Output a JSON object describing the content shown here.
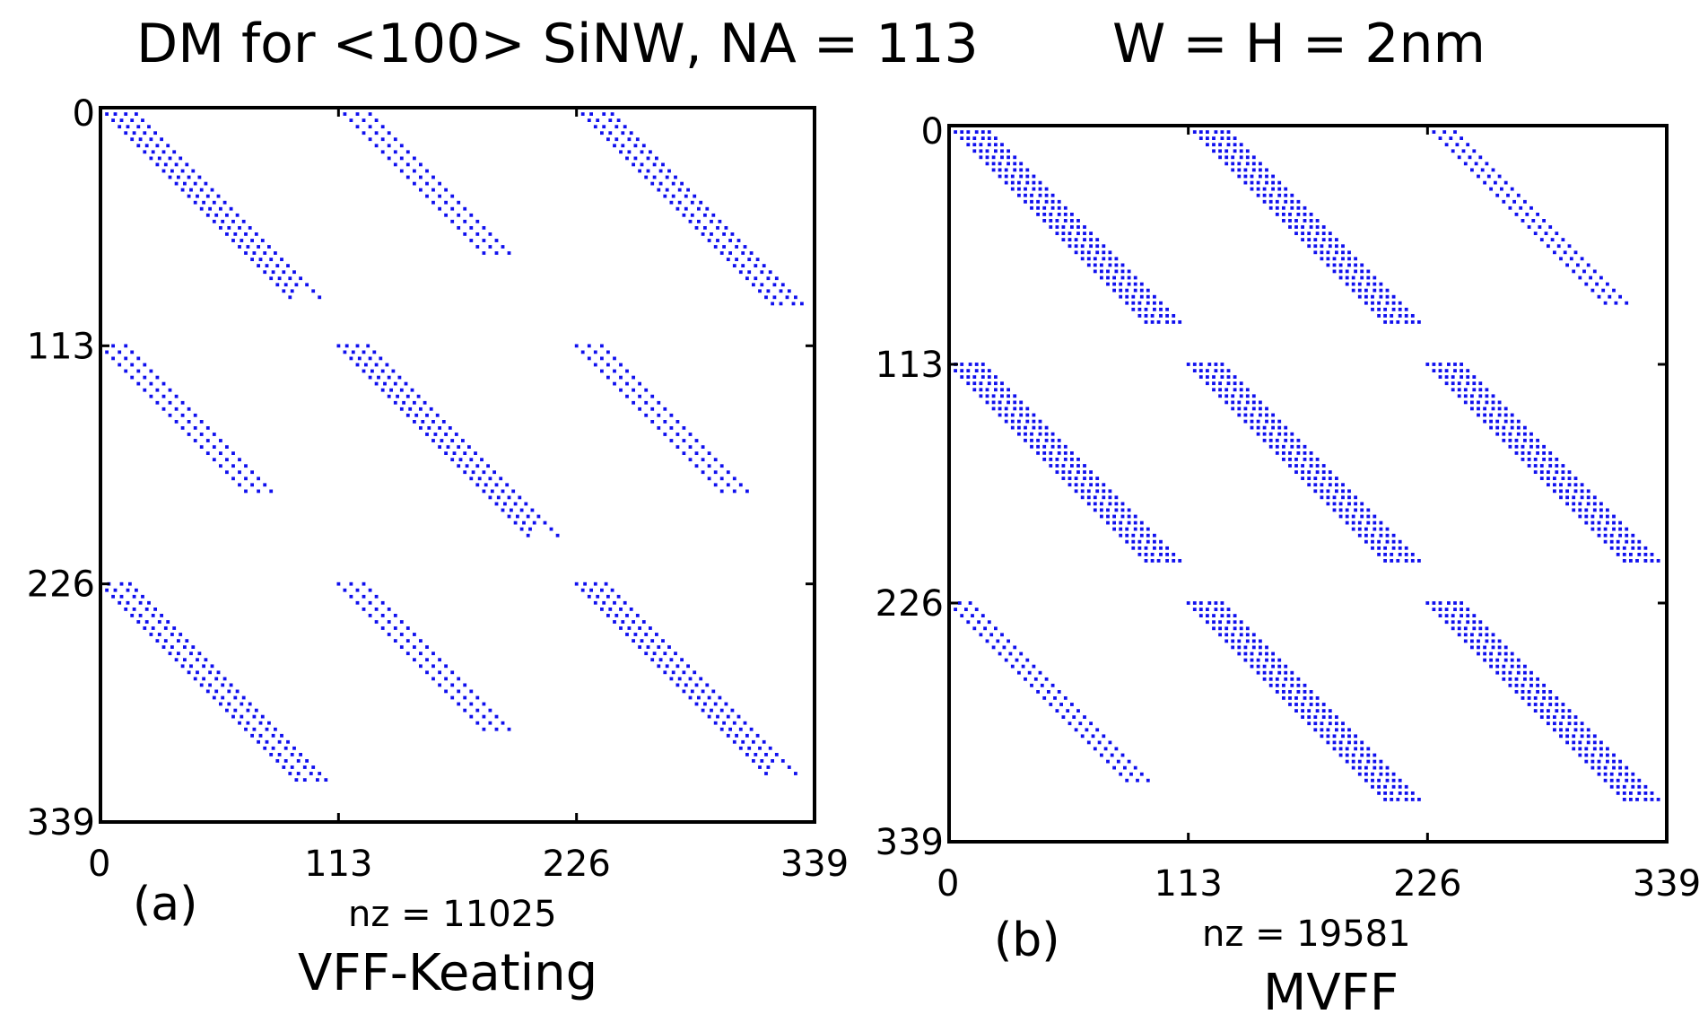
{
  "figure": {
    "title_left": "DM for <100> SiNW, NA = 113",
    "title_right": "W = H = 2nm"
  },
  "chart_data": [
    {
      "type": "scatter",
      "subtype": "sparsity-pattern",
      "panel_label": "(a)",
      "xlabel": "nz = 11025",
      "method": "VFF-Keating",
      "xlim": [
        0,
        339
      ],
      "ylim": [
        339,
        0
      ],
      "xticks": [
        "0",
        "113",
        "226",
        "339"
      ],
      "yticks": [
        "0",
        "113",
        "226",
        "339"
      ],
      "marker_color": "#1010ee",
      "grid": false,
      "block_size": 113,
      "block_pattern": [
        [
          "D",
          "A",
          "B",
          "C"
        ],
        [
          "A",
          "D",
          "A",
          "B"
        ],
        [
          "B",
          "A",
          "D",
          "A"
        ],
        [
          "C",
          "B",
          "A",
          "D"
        ]
      ],
      "block_stripes": {
        "D": [
          [
            0,
            92
          ],
          [
            4,
            88
          ],
          [
            9,
            86
          ],
          [
            14,
            92
          ]
        ],
        "A": [
          [
            0,
            70
          ],
          [
            6,
            70
          ],
          [
            12,
            70
          ]
        ],
        "B": [
          [
            0,
            96
          ],
          [
            4,
            96
          ],
          [
            10,
            96
          ],
          [
            14,
            96
          ]
        ],
        "C": [
          [
            0,
            74
          ],
          [
            6,
            74
          ],
          [
            12,
            74
          ]
        ]
      }
    },
    {
      "type": "scatter",
      "subtype": "sparsity-pattern",
      "panel_label": "(b)",
      "xlabel": "nz = 19581",
      "method": "MVFF",
      "xlim": [
        0,
        339
      ],
      "ylim": [
        339,
        0
      ],
      "xticks": [
        "0",
        "113",
        "226",
        "339"
      ],
      "yticks": [
        "0",
        "113",
        "226",
        "339"
      ],
      "marker_color": "#1010ee",
      "grid": false,
      "block_size": 113,
      "block_pattern": [
        [
          "D",
          "D",
          "A",
          "D"
        ],
        [
          "D",
          "D",
          "D",
          "A"
        ],
        [
          "A",
          "D",
          "D",
          "D"
        ],
        [
          "D",
          "A",
          "D",
          "D"
        ]
      ],
      "block_stripes": {
        "D": [
          [
            0,
            96
          ],
          [
            3,
            96
          ],
          [
            6,
            96
          ],
          [
            10,
            96
          ],
          [
            13,
            96
          ],
          [
            16,
            96
          ]
        ],
        "A": [
          [
            0,
            86
          ],
          [
            5,
            86
          ],
          [
            10,
            86
          ]
        ]
      }
    }
  ]
}
